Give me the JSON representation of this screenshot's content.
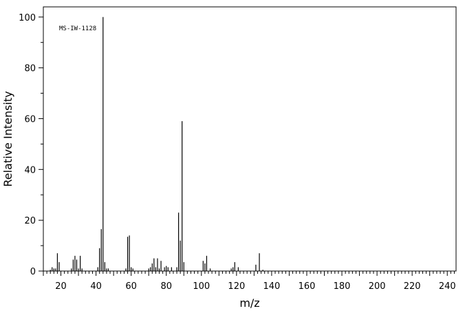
{
  "chart_data": {
    "type": "bar",
    "xlabel": "m/z",
    "ylabel": "Relative Intensity",
    "annotation": "MS-IW-1128",
    "xlim": [
      10,
      245
    ],
    "ylim": [
      0,
      104
    ],
    "x_ticks": [
      20,
      40,
      60,
      80,
      100,
      120,
      140,
      160,
      180,
      200,
      220,
      240
    ],
    "y_ticks": [
      0,
      20,
      40,
      60,
      80,
      100
    ],
    "grid": false,
    "peaks": {
      "mz": [
        14,
        15,
        16,
        17,
        18,
        19,
        26,
        27,
        28,
        29,
        30,
        31,
        32,
        41,
        42,
        43,
        44,
        45,
        46,
        47,
        57,
        58,
        59,
        60,
        61,
        70,
        71,
        72,
        73,
        74,
        75,
        76,
        77,
        79,
        80,
        81,
        83,
        86,
        87,
        88,
        89,
        90,
        101,
        102,
        103,
        105,
        117,
        118,
        119,
        121,
        131,
        133,
        135
      ],
      "intensity": [
        0.5,
        1.5,
        1.0,
        1.0,
        7.0,
        3.5,
        1.0,
        4.5,
        6.0,
        4.5,
        1.0,
        6.0,
        1.0,
        1.5,
        9.0,
        16.5,
        100,
        3.5,
        1.0,
        1.0,
        1.0,
        13.5,
        14.0,
        1.5,
        1.0,
        1.0,
        1.5,
        3.0,
        5.0,
        1.5,
        5.0,
        1.0,
        4.0,
        1.5,
        2.0,
        1.5,
        1.5,
        1.5,
        23.0,
        12.0,
        59.0,
        3.5,
        4.0,
        3.0,
        6.0,
        1.0,
        1.0,
        1.5,
        3.5,
        1.5,
        2.5,
        7.0,
        0.5
      ]
    }
  }
}
